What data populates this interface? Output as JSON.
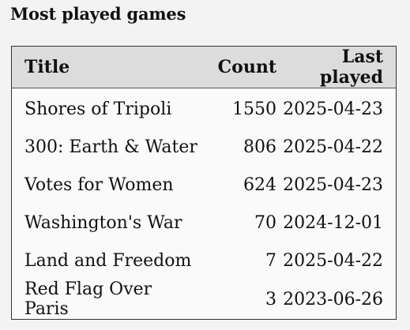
{
  "heading": "Most played games",
  "table": {
    "columns": {
      "title": "Title",
      "count": "Count",
      "last_played": "Last played"
    },
    "rows": [
      {
        "title": "Shores of Tripoli",
        "count": "1550",
        "last_played": "2025-04-23"
      },
      {
        "title": "300: Earth & Water",
        "count": "806",
        "last_played": "2025-04-22"
      },
      {
        "title": "Votes for Women",
        "count": "624",
        "last_played": "2025-04-23"
      },
      {
        "title": "Washington's War",
        "count": "70",
        "last_played": "2024-12-01"
      },
      {
        "title": "Land and Freedom",
        "count": "7",
        "last_played": "2025-04-22"
      },
      {
        "title": "Red Flag Over Paris",
        "count": "3",
        "last_played": "2023-06-26"
      }
    ]
  }
}
